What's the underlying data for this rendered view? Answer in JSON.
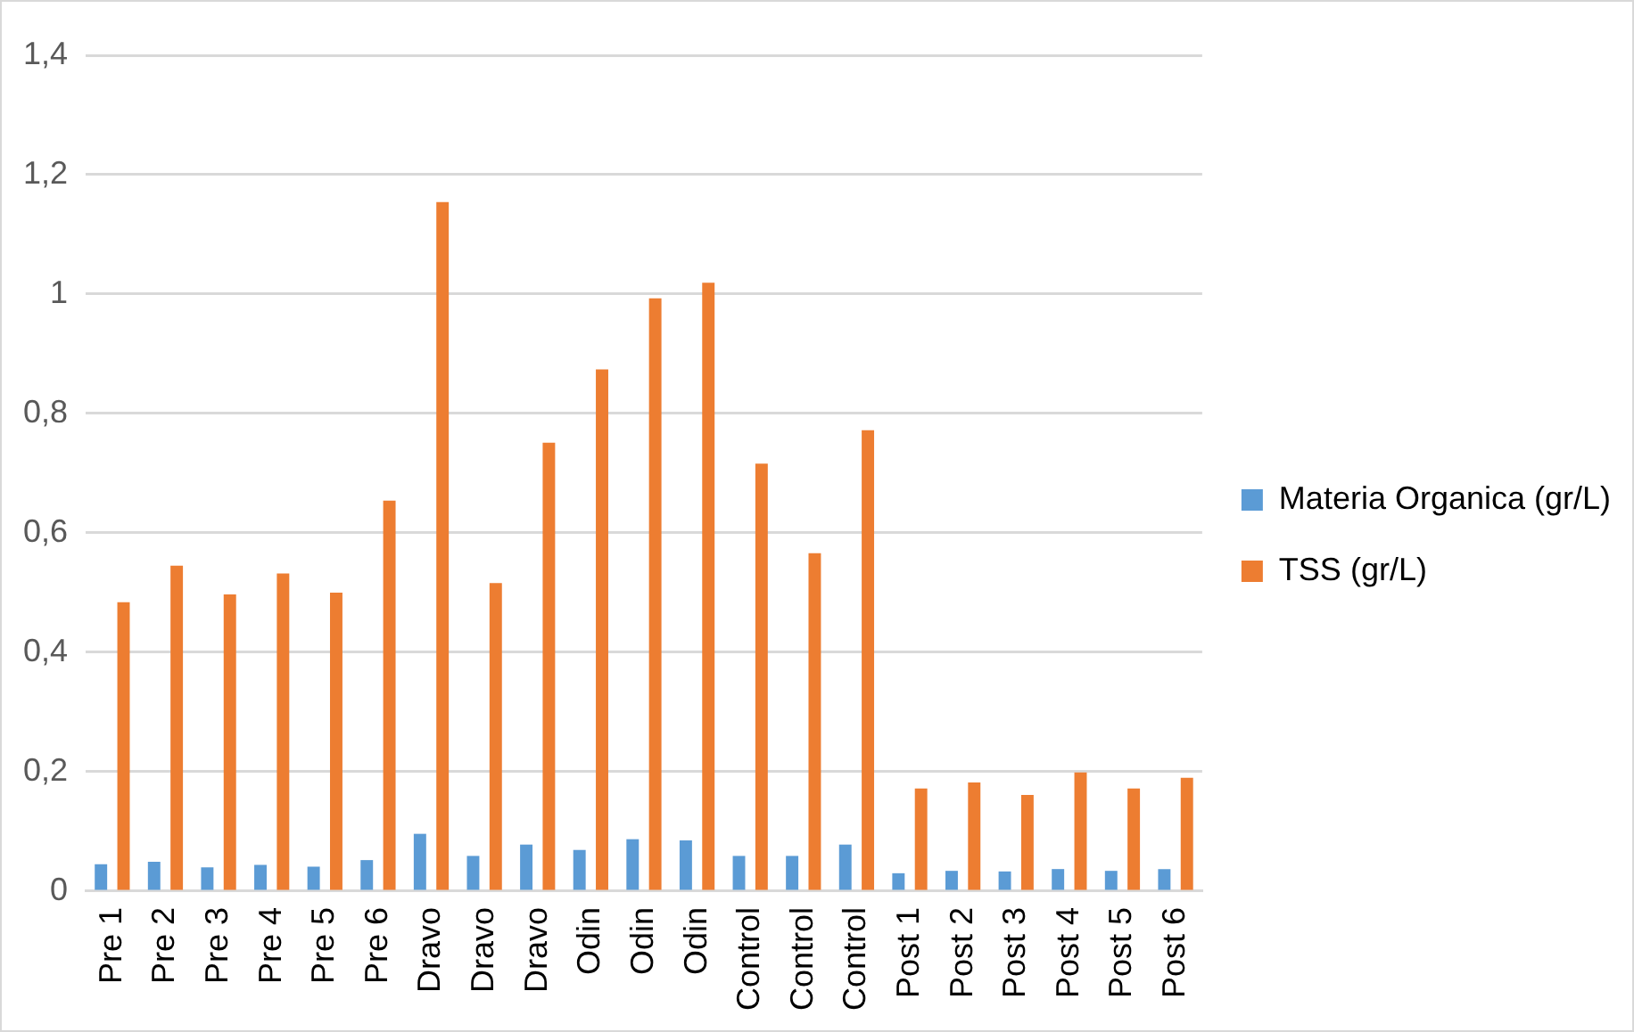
{
  "chart_data": {
    "type": "bar",
    "categories": [
      "Pre 1",
      "Pre 2",
      "Pre 3",
      "Pre 4",
      "Pre 5",
      "Pre 6",
      "Dravo",
      "Dravo",
      "Dravo",
      "Odin",
      "Odin",
      "Odin",
      "Control",
      "Control",
      "Control",
      "Post 1",
      "Post 2",
      "Post 3",
      "Post 4",
      "Post 5",
      "Post 6"
    ],
    "series": [
      {
        "name": "Materia Organica (gr/L)",
        "color": "#5b9bd5",
        "values": [
          0.045,
          0.049,
          0.04,
          0.044,
          0.041,
          0.052,
          0.096,
          0.059,
          0.078,
          0.069,
          0.087,
          0.085,
          0.059,
          0.059,
          0.078,
          0.03,
          0.034,
          0.033,
          0.037,
          0.034,
          0.037
        ]
      },
      {
        "name": "TSS (gr/L)",
        "color": "#ed7d31",
        "values": [
          0.484,
          0.545,
          0.497,
          0.532,
          0.5,
          0.654,
          1.154,
          0.516,
          0.751,
          0.874,
          0.993,
          1.019,
          0.716,
          0.566,
          0.772,
          0.172,
          0.182,
          0.161,
          0.199,
          0.172,
          0.19
        ]
      }
    ],
    "ylim": [
      0,
      1.4
    ],
    "yticks": [
      0,
      {
        "value": 0.2,
        "label": "0,2"
      },
      {
        "value": 0.4,
        "label": "0,4"
      },
      {
        "value": 0.6,
        "label": "0,6"
      },
      {
        "value": 0.8,
        "label": "0,8"
      },
      1,
      {
        "value": 1.2,
        "label": "1,2"
      },
      {
        "value": 1.4,
        "label": "1,4"
      }
    ],
    "grid": "y",
    "legend": "right"
  }
}
